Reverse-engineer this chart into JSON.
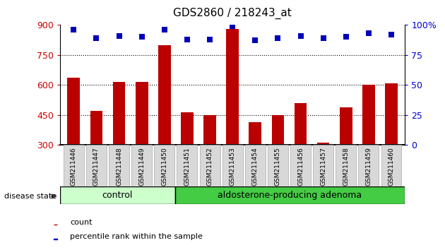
{
  "title": "GDS2860 / 218243_at",
  "samples": [
    "GSM211446",
    "GSM211447",
    "GSM211448",
    "GSM211449",
    "GSM211450",
    "GSM211451",
    "GSM211452",
    "GSM211453",
    "GSM211454",
    "GSM211455",
    "GSM211456",
    "GSM211457",
    "GSM211458",
    "GSM211459",
    "GSM211460"
  ],
  "counts": [
    635,
    470,
    615,
    615,
    800,
    465,
    450,
    880,
    415,
    450,
    510,
    310,
    490,
    600,
    610
  ],
  "percentiles": [
    96,
    89,
    91,
    90,
    96,
    88,
    88,
    99,
    87,
    89,
    91,
    89,
    90,
    93,
    92
  ],
  "groups": [
    "control",
    "control",
    "control",
    "control",
    "control",
    "aldosterone-producing adenoma",
    "aldosterone-producing adenoma",
    "aldosterone-producing adenoma",
    "aldosterone-producing adenoma",
    "aldosterone-producing adenoma",
    "aldosterone-producing adenoma",
    "aldosterone-producing adenoma",
    "aldosterone-producing adenoma",
    "aldosterone-producing adenoma",
    "aldosterone-producing adenoma"
  ],
  "ylim_left": [
    300,
    900
  ],
  "ylim_right": [
    0,
    100
  ],
  "yticks_left": [
    300,
    450,
    600,
    750,
    900
  ],
  "yticks_right": [
    0,
    25,
    50,
    75,
    100
  ],
  "bar_color": "#bb0000",
  "dot_color": "#0000bb",
  "control_color": "#ccffcc",
  "adenoma_color": "#44cc44",
  "tick_label_color_left": "#cc0000",
  "tick_label_color_right": "#0000cc",
  "bar_width": 0.55,
  "dot_size": 35,
  "dot_marker": "s",
  "control_count": 5,
  "adenoma_count": 10
}
